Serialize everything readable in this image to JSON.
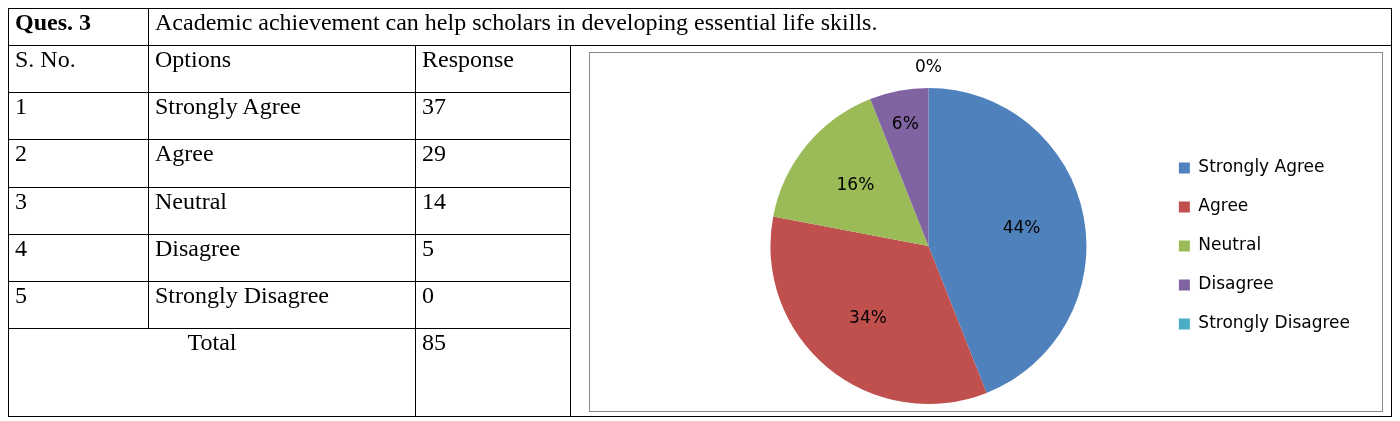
{
  "chart_data": {
    "type": "pie",
    "title": "Academic achievement can help scholars in developing essential life skills.",
    "categories": [
      "Strongly Agree",
      "Agree",
      "Neutral",
      "Disagree",
      "Strongly Disagree"
    ],
    "values": [
      44,
      34,
      16,
      6,
      0
    ],
    "colors": [
      "#4f81bd",
      "#c0504d",
      "#9bbb59",
      "#8064a2",
      "#4bacc6"
    ],
    "value_labels": [
      "44%",
      "34%",
      "16%",
      "6%",
      "0%"
    ],
    "data_labels": true,
    "legend": "right",
    "annotations": [
      "Ques. 3",
      "S. No.",
      "Options",
      "Response",
      "1",
      "2",
      "3",
      "4",
      "5",
      "Total",
      "85",
      "37",
      "29",
      "14",
      "5",
      "0"
    ]
  }
}
